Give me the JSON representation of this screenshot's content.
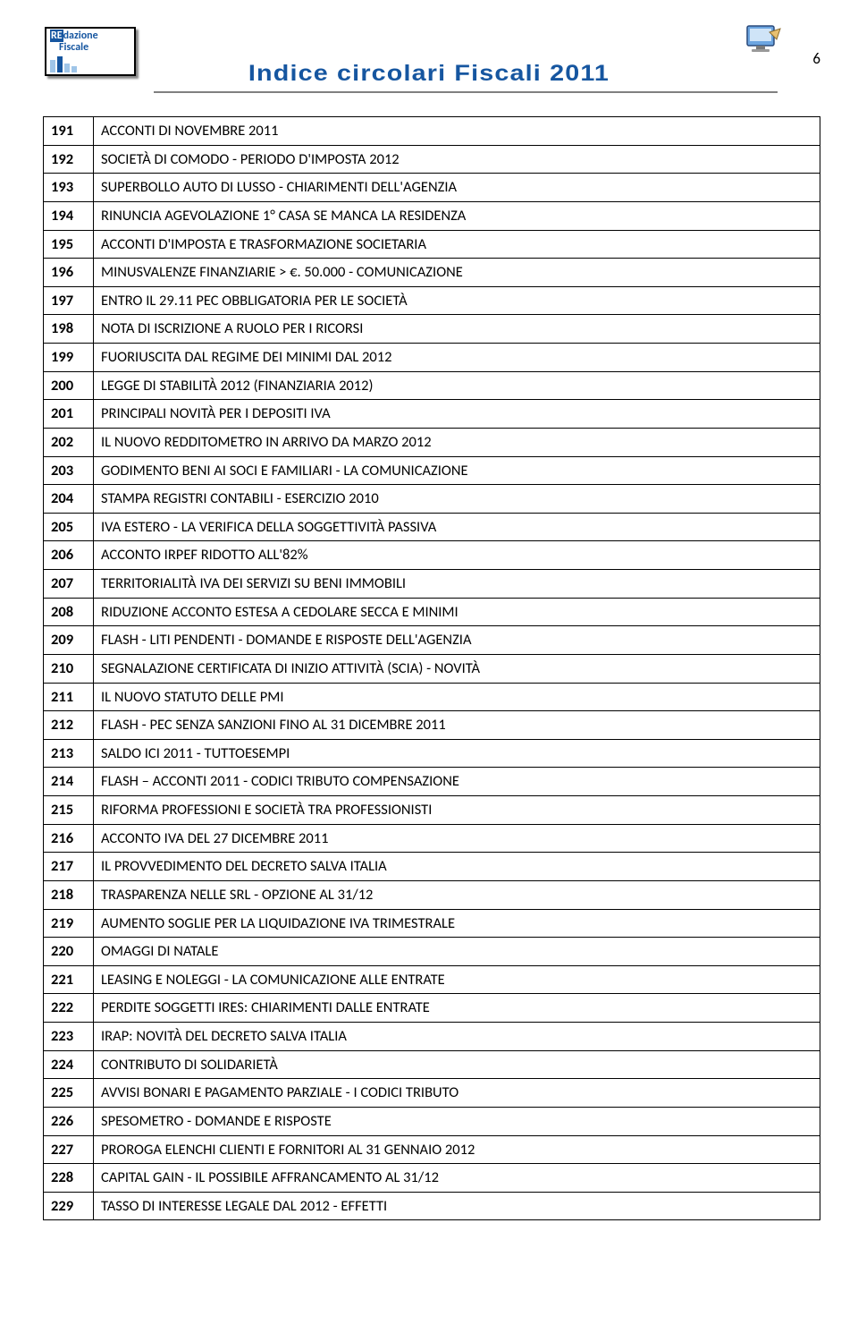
{
  "header": {
    "logo_line1_prefix": "RE",
    "logo_line1_rest": "dazione",
    "logo_line2": "Fiscale",
    "title": "Indice circolari Fiscali 2011",
    "page_number": "6"
  },
  "rows": [
    {
      "num": "191",
      "text": "ACCONTI DI NOVEMBRE 2011"
    },
    {
      "num": "192",
      "text": "SOCIETÀ DI COMODO -  PERIODO D'IMPOSTA 2012"
    },
    {
      "num": "193",
      "text": "SUPERBOLLO AUTO DI LUSSO - CHIARIMENTI DELL'AGENZIA"
    },
    {
      "num": "194",
      "text": "RINUNCIA AGEVOLAZIONE 1° CASA SE MANCA LA RESIDENZA"
    },
    {
      "num": "195",
      "text": "ACCONTI D'IMPOSTA E TRASFORMAZIONE SOCIETARIA"
    },
    {
      "num": "196",
      "text": "MINUSVALENZE FINANZIARIE > €. 50.000 - COMUNICAZIONE"
    },
    {
      "num": "197",
      "text": "ENTRO IL 29.11 PEC OBBLIGATORIA PER LE SOCIETÀ"
    },
    {
      "num": "198",
      "text": "NOTA DI ISCRIZIONE A RUOLO PER I RICORSI"
    },
    {
      "num": "199",
      "text": "FUORIUSCITA DAL REGIME DEI MINIMI DAL 2012"
    },
    {
      "num": "200",
      "text": "LEGGE DI STABILITÀ 2012 (FINANZIARIA 2012)"
    },
    {
      "num": "201",
      "text": "PRINCIPALI NOVITÀ PER I DEPOSITI IVA"
    },
    {
      "num": "202",
      "text": "IL NUOVO REDDITOMETRO IN ARRIVO DA MARZO 2012"
    },
    {
      "num": "203",
      "text": "GODIMENTO BENI AI SOCI E FAMILIARI - LA COMUNICAZIONE"
    },
    {
      "num": "204",
      "text": "STAMPA REGISTRI CONTABILI - ESERCIZIO 2010"
    },
    {
      "num": "205",
      "text": "IVA ESTERO - LA VERIFICA DELLA SOGGETTIVITÀ PASSIVA"
    },
    {
      "num": "206",
      "text": "ACCONTO IRPEF RIDOTTO ALL'82%"
    },
    {
      "num": "207",
      "text": "TERRITORIALITÀ IVA DEI SERVIZI SU BENI IMMOBILI"
    },
    {
      "num": "208",
      "text": "RIDUZIONE ACCONTO ESTESA A CEDOLARE SECCA E MINIMI"
    },
    {
      "num": "209",
      "text": "FLASH - LITI PENDENTI - DOMANDE E RISPOSTE DELL'AGENZIA"
    },
    {
      "num": "210",
      "text": "SEGNALAZIONE CERTIFICATA DI INIZIO ATTIVITÀ (SCIA) - NOVITÀ"
    },
    {
      "num": "211",
      "text": "IL NUOVO STATUTO DELLE PMI"
    },
    {
      "num": "212",
      "text": "FLASH - PEC SENZA SANZIONI FINO AL 31 DICEMBRE 2011"
    },
    {
      "num": "213",
      "text": "SALDO ICI 2011 - TUTTOESEMPI"
    },
    {
      "num": "214",
      "text": "FLASH – ACCONTI 2011 - CODICI TRIBUTO COMPENSAZIONE"
    },
    {
      "num": "215",
      "text": "RIFORMA PROFESSIONI E SOCIETÀ TRA PROFESSIONISTI"
    },
    {
      "num": "216",
      "text": "ACCONTO IVA DEL 27 DICEMBRE 2011"
    },
    {
      "num": "217",
      "text": "IL PROVVEDIMENTO DEL DECRETO SALVA ITALIA"
    },
    {
      "num": "218",
      "text": "TRASPARENZA NELLE SRL - OPZIONE AL 31/12"
    },
    {
      "num": "219",
      "text": "AUMENTO SOGLIE PER LA LIQUIDAZIONE IVA TRIMESTRALE"
    },
    {
      "num": "220",
      "text": "OMAGGI DI NATALE"
    },
    {
      "num": "221",
      "text": "LEASING E NOLEGGI - LA COMUNICAZIONE ALLE ENTRATE"
    },
    {
      "num": "222",
      "text": "PERDITE SOGGETTI IRES: CHIARIMENTI DALLE ENTRATE"
    },
    {
      "num": "223",
      "text": "IRAP: NOVITÀ DEL DECRETO SALVA ITALIA"
    },
    {
      "num": "224",
      "text": "CONTRIBUTO DI SOLIDARIETÀ"
    },
    {
      "num": "225",
      "text": "AVVISI BONARI E PAGAMENTO PARZIALE - I CODICI TRIBUTO"
    },
    {
      "num": "226",
      "text": "SPESOMETRO - DOMANDE E RISPOSTE"
    },
    {
      "num": "227",
      "text": "PROROGA ELENCHI CLIENTI E FORNITORI AL 31 GENNAIO 2012"
    },
    {
      "num": "228",
      "text": "CAPITAL GAIN -  IL POSSIBILE AFFRANCAMENTO AL 31/12"
    },
    {
      "num": "229",
      "text": "TASSO DI INTERESSE LEGALE DAL 2012 - EFFETTI"
    }
  ]
}
